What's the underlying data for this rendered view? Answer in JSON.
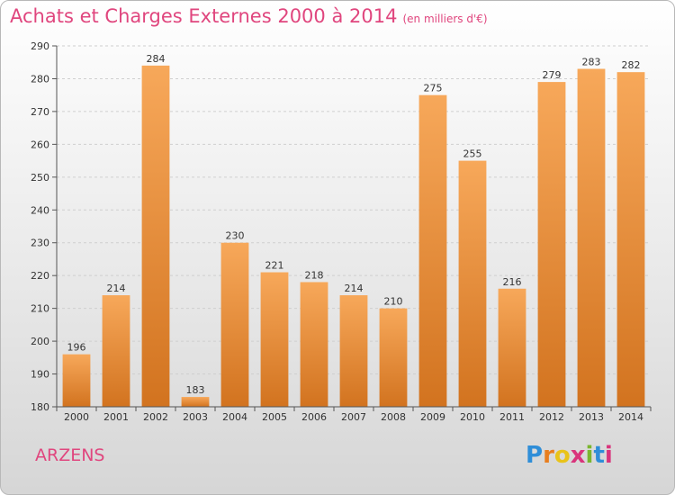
{
  "header": {
    "title": "Achats et Charges Externes 2000 à 2014",
    "unit": "(en milliers d'€)"
  },
  "footer": {
    "commune": "ARZENS",
    "logo_letters": [
      "P",
      "r",
      "o",
      "x",
      "i",
      "t",
      "i"
    ]
  },
  "colors": {
    "title": "#e0467e",
    "bar_light": "#f7a85a",
    "bar_dark": "#d2731f"
  },
  "chart_data": {
    "type": "bar",
    "title": "Achats et Charges Externes 2000 à 2014",
    "subtitle": "(en milliers d'€)",
    "categories": [
      "2000",
      "2001",
      "2002",
      "2003",
      "2004",
      "2005",
      "2006",
      "2007",
      "2008",
      "2009",
      "2010",
      "2011",
      "2012",
      "2013",
      "2014"
    ],
    "values": [
      196,
      214,
      284,
      183,
      230,
      221,
      218,
      214,
      210,
      275,
      255,
      216,
      279,
      283,
      282
    ],
    "ylim": [
      180,
      290
    ],
    "yticks": [
      180,
      190,
      200,
      210,
      220,
      230,
      240,
      250,
      260,
      270,
      280,
      290
    ],
    "grid": true,
    "xlabel": "",
    "ylabel": ""
  }
}
